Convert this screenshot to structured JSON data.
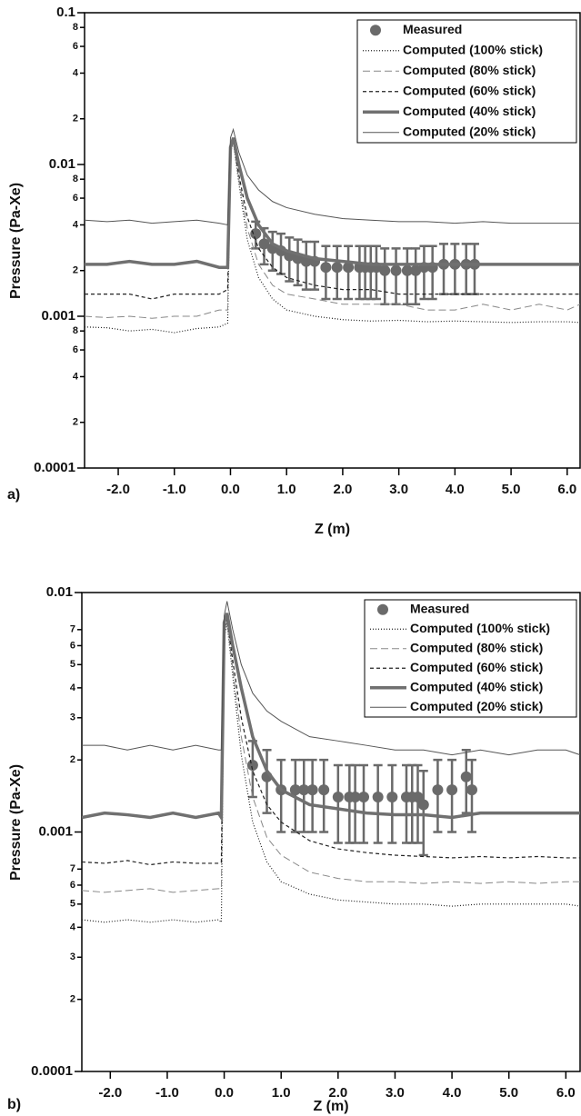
{
  "chart_data": [
    {
      "type": "line",
      "panel_label": "a)",
      "x_label": "Z (m)",
      "y_label": "Pressure (Pa-Xe)",
      "log_y": true,
      "legend": "upper right",
      "xlim": [
        -2.6,
        6.23
      ],
      "ylim": [
        0.0001,
        0.1
      ],
      "xticks": [
        {
          "value": -2,
          "label": "-2.0"
        },
        {
          "value": -1,
          "label": "-1.0"
        },
        {
          "value": 0,
          "label": "0.0"
        },
        {
          "value": 1,
          "label": "1.0"
        },
        {
          "value": 2,
          "label": "2.0"
        },
        {
          "value": 3,
          "label": "3.0"
        },
        {
          "value": 4,
          "label": "4.0"
        },
        {
          "value": 5,
          "label": "5.0"
        },
        {
          "value": 6,
          "label": "6.0"
        }
      ],
      "yticks": [
        0.1,
        {
          "value": 0.08,
          "label": "8"
        },
        {
          "value": 0.06,
          "label": "6"
        },
        {
          "value": 0.04,
          "label": "4"
        },
        {
          "value": 0.02,
          "label": "2"
        },
        0.01,
        {
          "value": 0.008,
          "label": "8"
        },
        {
          "value": 0.006,
          "label": "6"
        },
        {
          "value": 0.004,
          "label": "4"
        },
        {
          "value": 0.002,
          "label": "2"
        },
        0.001,
        {
          "value": 0.0008,
          "label": "8"
        },
        {
          "value": 0.0006,
          "label": "6"
        },
        {
          "value": 0.0004,
          "label": "4"
        },
        {
          "value": 0.0002,
          "label": "2"
        },
        0.0001
      ],
      "series": [
        {
          "name": "Measured",
          "marker": "circle",
          "color": "#6a6a6a",
          "x": [
            0.45,
            0.6,
            0.75,
            0.9,
            1.05,
            1.2,
            1.35,
            1.5,
            1.7,
            1.9,
            2.1,
            2.3,
            2.4,
            2.5,
            2.6,
            2.75,
            2.95,
            3.15,
            3.3,
            3.45,
            3.6,
            3.8,
            4.0,
            4.2,
            4.35
          ],
          "values": [
            0.0035,
            0.003,
            0.0028,
            0.0027,
            0.0025,
            0.0024,
            0.0023,
            0.0023,
            0.0021,
            0.0021,
            0.0021,
            0.0021,
            0.0021,
            0.0021,
            0.0021,
            0.002,
            0.002,
            0.002,
            0.002,
            0.0021,
            0.0021,
            0.0022,
            0.0022,
            0.0022,
            0.0022
          ],
          "errors": [
            0.0007,
            0.0008,
            0.0008,
            0.0008,
            0.0008,
            0.0008,
            0.0008,
            0.0008,
            0.0008,
            0.0008,
            0.0008,
            0.0008,
            0.0008,
            0.0008,
            0.0008,
            0.0008,
            0.0008,
            0.0008,
            0.0008,
            0.0008,
            0.0008,
            0.0008,
            0.0008,
            0.0008,
            0.0008
          ]
        },
        {
          "name": "Computed (100% stick)",
          "line_style": "dotted",
          "color": "#222222",
          "x": [
            -2.6,
            -2.2,
            -1.8,
            -1.4,
            -1.0,
            -0.6,
            -0.2,
            -0.05,
            0.0,
            0.05,
            0.15,
            0.3,
            0.5,
            0.75,
            1.0,
            1.5,
            2.0,
            2.5,
            3.0,
            3.5,
            4.0,
            4.5,
            5.0,
            5.5,
            6.0,
            6.23
          ],
          "values": [
            0.00085,
            0.00084,
            0.0008,
            0.00082,
            0.00078,
            0.00083,
            0.00085,
            0.0009,
            0.012,
            0.014,
            0.0075,
            0.0032,
            0.0018,
            0.0013,
            0.0011,
            0.001,
            0.00095,
            0.00093,
            0.00094,
            0.00092,
            0.00093,
            0.00092,
            0.00091,
            0.00092,
            0.00092,
            0.00091
          ]
        },
        {
          "name": "Computed (80% stick)",
          "line_style": "long-dash",
          "color": "#888888",
          "x": [
            -2.6,
            -2.2,
            -1.8,
            -1.4,
            -1.0,
            -0.6,
            -0.2,
            -0.05,
            0.0,
            0.05,
            0.15,
            0.3,
            0.5,
            0.75,
            1.0,
            1.5,
            2.0,
            2.5,
            3.0,
            3.5,
            4.0,
            4.5,
            5.0,
            5.5,
            6.0,
            6.23
          ],
          "values": [
            0.001,
            0.00098,
            0.001,
            0.00097,
            0.001,
            0.001,
            0.0011,
            0.0011,
            0.0125,
            0.014,
            0.008,
            0.0038,
            0.0022,
            0.0016,
            0.0014,
            0.0013,
            0.0012,
            0.0012,
            0.0012,
            0.0011,
            0.0011,
            0.0012,
            0.0011,
            0.0012,
            0.0011,
            0.0012
          ]
        },
        {
          "name": "Computed (60% stick)",
          "line_style": "dash",
          "color": "#222222",
          "x": [
            -2.6,
            -2.2,
            -1.8,
            -1.4,
            -1.0,
            -0.6,
            -0.2,
            -0.05,
            0.0,
            0.05,
            0.15,
            0.3,
            0.5,
            0.75,
            1.0,
            1.5,
            2.0,
            2.5,
            3.0,
            3.5,
            4.0,
            4.5,
            5.0,
            5.5,
            6.0,
            6.23
          ],
          "values": [
            0.0014,
            0.0014,
            0.0014,
            0.0013,
            0.0014,
            0.0014,
            0.0014,
            0.0015,
            0.013,
            0.0145,
            0.0085,
            0.0045,
            0.0028,
            0.0021,
            0.0018,
            0.0016,
            0.0015,
            0.0015,
            0.0014,
            0.0014,
            0.0014,
            0.0014,
            0.0014,
            0.0014,
            0.0014,
            0.0014
          ]
        },
        {
          "name": "Computed (40% stick)",
          "line_style": "thick",
          "color": "#707070",
          "x": [
            -2.6,
            -2.2,
            -1.8,
            -1.4,
            -1.0,
            -0.6,
            -0.2,
            -0.05,
            0.0,
            0.05,
            0.15,
            0.3,
            0.5,
            0.75,
            1.0,
            1.5,
            2.0,
            2.5,
            3.0,
            3.5,
            4.0,
            4.5,
            5.0,
            5.5,
            6.0,
            6.23
          ],
          "values": [
            0.0022,
            0.0022,
            0.0023,
            0.0022,
            0.0022,
            0.0023,
            0.0021,
            0.0021,
            0.013,
            0.015,
            0.01,
            0.006,
            0.004,
            0.003,
            0.0027,
            0.0024,
            0.0023,
            0.0022,
            0.0022,
            0.0022,
            0.0022,
            0.0022,
            0.0022,
            0.0022,
            0.0022,
            0.0022
          ]
        },
        {
          "name": "Computed (20% stick)",
          "line_style": "thin",
          "color": "#555555",
          "x": [
            -2.6,
            -2.2,
            -1.8,
            -1.4,
            -1.0,
            -0.6,
            -0.2,
            -0.05,
            0.0,
            0.05,
            0.15,
            0.3,
            0.5,
            0.75,
            1.0,
            1.5,
            2.0,
            2.5,
            3.0,
            3.5,
            4.0,
            4.5,
            5.0,
            5.5,
            6.0,
            6.23
          ],
          "values": [
            0.0043,
            0.0042,
            0.0043,
            0.0041,
            0.0042,
            0.0043,
            0.0041,
            0.004,
            0.015,
            0.017,
            0.012,
            0.0085,
            0.0068,
            0.0057,
            0.0052,
            0.0047,
            0.0044,
            0.0043,
            0.0042,
            0.0042,
            0.0041,
            0.0042,
            0.0041,
            0.0041,
            0.0041,
            0.0041
          ]
        }
      ]
    },
    {
      "type": "line",
      "panel_label": "b)",
      "x_label": "Z (m)",
      "y_label": "Pressure (Pa-Xe)",
      "log_y": true,
      "legend": "upper right",
      "xlim": [
        -2.5,
        6.25
      ],
      "ylim": [
        0.0001,
        0.01
      ],
      "xticks": [
        {
          "value": -2,
          "label": "-2.0"
        },
        {
          "value": -1,
          "label": "-1.0"
        },
        {
          "value": 0,
          "label": "0.0"
        },
        {
          "value": 1,
          "label": "1.0"
        },
        {
          "value": 2,
          "label": "2.0"
        },
        {
          "value": 3,
          "label": "3.0"
        },
        {
          "value": 4,
          "label": "4.0"
        },
        {
          "value": 5,
          "label": "5.0"
        },
        {
          "value": 6,
          "label": "6.0"
        }
      ],
      "yticks": [
        0.01,
        {
          "value": 0.007,
          "label": "7"
        },
        {
          "value": 0.006,
          "label": "6"
        },
        {
          "value": 0.005,
          "label": "5"
        },
        {
          "value": 0.004,
          "label": "4"
        },
        {
          "value": 0.003,
          "label": "3"
        },
        {
          "value": 0.002,
          "label": "2"
        },
        0.001,
        {
          "value": 0.0007,
          "label": "7"
        },
        {
          "value": 0.0006,
          "label": "6"
        },
        {
          "value": 0.0005,
          "label": "5"
        },
        {
          "value": 0.0004,
          "label": "4"
        },
        {
          "value": 0.0003,
          "label": "3"
        },
        {
          "value": 0.0002,
          "label": "2"
        },
        0.0001
      ],
      "series": [
        {
          "name": "Measured",
          "marker": "circle",
          "color": "#6a6a6a",
          "x": [
            0.5,
            0.75,
            1.0,
            1.25,
            1.4,
            1.55,
            1.75,
            2.0,
            2.2,
            2.3,
            2.45,
            2.7,
            2.95,
            3.2,
            3.3,
            3.4,
            3.5,
            3.75,
            4.0,
            4.25,
            4.35
          ],
          "values": [
            0.0019,
            0.0017,
            0.0015,
            0.0015,
            0.0015,
            0.0015,
            0.0015,
            0.0014,
            0.0014,
            0.0014,
            0.0014,
            0.0014,
            0.0014,
            0.0014,
            0.0014,
            0.0014,
            0.0013,
            0.0015,
            0.0015,
            0.0017,
            0.0015
          ],
          "errors": [
            0.0005,
            0.0005,
            0.0005,
            0.0005,
            0.0005,
            0.0005,
            0.0005,
            0.0005,
            0.0005,
            0.0005,
            0.0005,
            0.0005,
            0.0005,
            0.0005,
            0.0005,
            0.0005,
            0.0005,
            0.0005,
            0.0005,
            0.0005,
            0.0005
          ]
        },
        {
          "name": "Computed (100% stick)",
          "line_style": "dotted",
          "color": "#222222",
          "x": [
            -2.5,
            -2.1,
            -1.7,
            -1.3,
            -0.9,
            -0.5,
            -0.1,
            -0.05,
            0.0,
            0.05,
            0.15,
            0.3,
            0.5,
            0.75,
            1.0,
            1.5,
            2.0,
            2.5,
            3.0,
            3.5,
            4.0,
            4.5,
            5.0,
            5.5,
            6.0,
            6.25
          ],
          "values": [
            0.00043,
            0.00042,
            0.00043,
            0.00042,
            0.00043,
            0.00042,
            0.00043,
            0.00042,
            0.0065,
            0.0074,
            0.0045,
            0.0021,
            0.0011,
            0.00075,
            0.00062,
            0.00055,
            0.00052,
            0.00051,
            0.0005,
            0.0005,
            0.00049,
            0.0005,
            0.0005,
            0.0005,
            0.0005,
            0.00049
          ]
        },
        {
          "name": "Computed (80% stick)",
          "line_style": "long-dash",
          "color": "#888888",
          "x": [
            -2.5,
            -2.1,
            -1.7,
            -1.3,
            -0.9,
            -0.5,
            -0.1,
            -0.05,
            0.0,
            0.05,
            0.15,
            0.3,
            0.5,
            0.75,
            1.0,
            1.5,
            2.0,
            2.5,
            3.0,
            3.5,
            4.0,
            4.5,
            5.0,
            5.5,
            6.0,
            6.25
          ],
          "values": [
            0.00057,
            0.00056,
            0.00057,
            0.00058,
            0.00056,
            0.00057,
            0.00058,
            0.00058,
            0.0068,
            0.0076,
            0.0048,
            0.0025,
            0.0014,
            0.00095,
            0.0008,
            0.00068,
            0.00064,
            0.00062,
            0.00062,
            0.00061,
            0.00062,
            0.00061,
            0.00062,
            0.00061,
            0.00062,
            0.00062
          ]
        },
        {
          "name": "Computed (60% stick)",
          "line_style": "dash",
          "color": "#222222",
          "x": [
            -2.5,
            -2.1,
            -1.7,
            -1.3,
            -0.9,
            -0.5,
            -0.1,
            -0.05,
            0.0,
            0.05,
            0.15,
            0.3,
            0.5,
            0.75,
            1.0,
            1.5,
            2.0,
            2.5,
            3.0,
            3.5,
            4.0,
            4.5,
            5.0,
            5.5,
            6.0,
            6.25
          ],
          "values": [
            0.00075,
            0.00074,
            0.00076,
            0.00073,
            0.00075,
            0.00074,
            0.00074,
            0.00075,
            0.007,
            0.0078,
            0.0052,
            0.003,
            0.0018,
            0.0013,
            0.0011,
            0.00092,
            0.00085,
            0.00082,
            0.0008,
            0.00079,
            0.00078,
            0.00079,
            0.00078,
            0.00079,
            0.00078,
            0.00078
          ]
        },
        {
          "name": "Computed (40% stick)",
          "line_style": "thick",
          "color": "#707070",
          "x": [
            -2.5,
            -2.1,
            -1.7,
            -1.3,
            -0.9,
            -0.5,
            -0.1,
            -0.05,
            0.0,
            0.05,
            0.15,
            0.3,
            0.5,
            0.75,
            1.0,
            1.5,
            2.0,
            2.5,
            3.0,
            3.5,
            4.0,
            4.5,
            5.0,
            5.5,
            6.0,
            6.25
          ],
          "values": [
            0.00115,
            0.0012,
            0.00118,
            0.00115,
            0.0012,
            0.00115,
            0.0012,
            0.00115,
            0.0075,
            0.0082,
            0.006,
            0.004,
            0.0025,
            0.0018,
            0.0015,
            0.0013,
            0.00125,
            0.0012,
            0.00118,
            0.00118,
            0.00115,
            0.0012,
            0.0012,
            0.0012,
            0.0012,
            0.0012
          ]
        },
        {
          "name": "Computed (20% stick)",
          "line_style": "thin",
          "color": "#555555",
          "x": [
            -2.5,
            -2.1,
            -1.7,
            -1.3,
            -0.9,
            -0.5,
            -0.1,
            -0.05,
            0.0,
            0.05,
            0.15,
            0.3,
            0.5,
            0.75,
            1.0,
            1.5,
            2.0,
            2.5,
            3.0,
            3.5,
            4.0,
            4.5,
            5.0,
            5.5,
            6.0,
            6.25
          ],
          "values": [
            0.0023,
            0.0023,
            0.0022,
            0.0023,
            0.0022,
            0.0023,
            0.0022,
            0.0022,
            0.008,
            0.0092,
            0.007,
            0.005,
            0.0038,
            0.0032,
            0.0029,
            0.0025,
            0.0024,
            0.0023,
            0.0022,
            0.0022,
            0.0021,
            0.0022,
            0.0021,
            0.0022,
            0.0022,
            0.0021
          ]
        }
      ]
    }
  ]
}
